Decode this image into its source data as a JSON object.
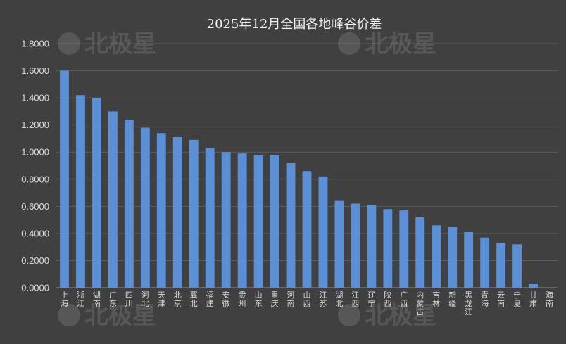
{
  "chart_data": {
    "type": "bar",
    "title": "2025年12月全国各地峰谷价差",
    "categories": [
      "上海",
      "浙江",
      "湖南",
      "广东",
      "四川",
      "河北",
      "天津",
      "北京",
      "冀北",
      "福建",
      "安徽",
      "贵州",
      "山东",
      "重庆",
      "河南",
      "山西",
      "江苏",
      "湖北",
      "江西",
      "辽宁",
      "陕西",
      "广西",
      "内蒙古",
      "吉林",
      "新疆",
      "黑龙江",
      "青海",
      "云南",
      "宁夏",
      "甘肃",
      "海南"
    ],
    "values": [
      1.6,
      1.42,
      1.4,
      1.3,
      1.24,
      1.18,
      1.14,
      1.11,
      1.09,
      1.03,
      1.0,
      0.99,
      0.98,
      0.98,
      0.92,
      0.86,
      0.82,
      0.64,
      0.62,
      0.61,
      0.58,
      0.57,
      0.52,
      0.46,
      0.45,
      0.41,
      0.37,
      0.33,
      0.32,
      0.03,
      0.0
    ],
    "ylim": [
      0,
      1.8
    ],
    "yticks": [
      "0.0000",
      "0.2000",
      "0.4000",
      "0.6000",
      "0.8000",
      "1.0000",
      "1.2000",
      "1.4000",
      "1.6000",
      "1.8000"
    ],
    "xlabel": "",
    "ylabel": "",
    "grid": true,
    "legend": "none",
    "bar_color": "#5b8fd6"
  },
  "watermark": {
    "text": "北极星"
  }
}
